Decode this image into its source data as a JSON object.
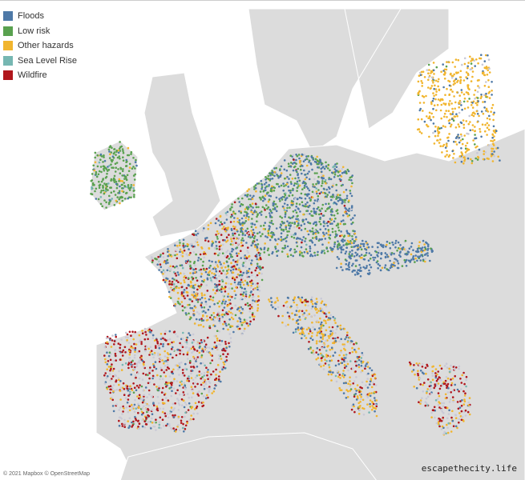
{
  "legend": [
    {
      "name": "Floods",
      "color": "#4e79a7"
    },
    {
      "name": "Low risk",
      "color": "#59a14f"
    },
    {
      "name": "Other hazards",
      "color": "#f1b52e"
    },
    {
      "name": "Sea Level Rise",
      "color": "#76b7b2"
    },
    {
      "name": "Wildfire",
      "color": "#b0161c"
    }
  ],
  "attribution": "© 2021 Mapbox © OpenStreetMap",
  "watermark": "escapethecity.life"
}
